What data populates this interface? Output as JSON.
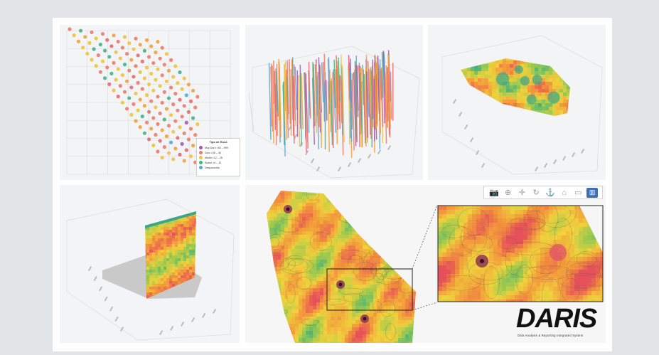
{
  "legend": {
    "title": "Tipo de Roca",
    "items": [
      {
        "label": "Muy Duro >40 – 999",
        "color": "#a05ab4"
      },
      {
        "label": "Duro >35 – 40",
        "color": "#f07a6a"
      },
      {
        "label": "Medio >12 – 25",
        "color": "#f2c23c"
      },
      {
        "label": "Suave >0 – 12",
        "color": "#3fb58a"
      },
      {
        "label": "Desconocido",
        "color": "#5aa7d8"
      }
    ]
  },
  "toolbar": {
    "icons": [
      "camera-icon",
      "zoom-icon",
      "pan-icon",
      "rotate-icon",
      "anchor-icon",
      "home-icon",
      "save-icon",
      "bar-chart-icon"
    ],
    "glyphs": [
      "📷",
      "⊕",
      "✛",
      "↻",
      "⚓",
      "⌂",
      "▭",
      "▥"
    ]
  },
  "branding": {
    "logo": "DARIS",
    "tagline": "Data Analysis & Reporting Integrated System"
  }
}
